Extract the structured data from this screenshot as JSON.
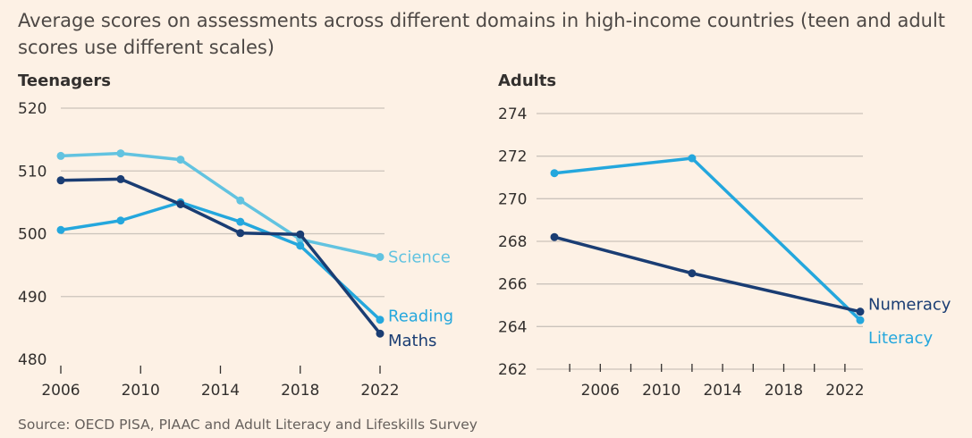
{
  "title": "Average scores on assessments across different domains in high-income countries (teen and adult scores use different scales)",
  "source": "Source: OECD PISA, PIAAC and Adult Literacy and Lifeskills Survey",
  "colors": {
    "science": "#62c3e0",
    "reading": "#24a7dd",
    "maths": "#1a3d73",
    "numeracy": "#1a3d73",
    "literacy": "#24a7dd",
    "grid": "#cbc3bb",
    "background": "#fdf1e5"
  },
  "chart_data": [
    {
      "type": "line",
      "title": "Teenagers",
      "x_ticks": [
        2006,
        2010,
        2014,
        2018,
        2022
      ],
      "y_ticks": [
        480,
        490,
        500,
        510,
        520
      ],
      "xlim": [
        2006,
        2022
      ],
      "ylim": [
        480,
        520
      ],
      "grid": true,
      "series": [
        {
          "name": "Science",
          "color_key": "science",
          "points": [
            [
              2006,
              512.4
            ],
            [
              2009,
              512.8
            ],
            [
              2012,
              511.8
            ],
            [
              2015,
              505.3
            ],
            [
              2018,
              499.1
            ],
            [
              2022,
              496.3
            ]
          ]
        },
        {
          "name": "Reading",
          "color_key": "reading",
          "points": [
            [
              2006,
              500.6
            ],
            [
              2009,
              502.1
            ],
            [
              2012,
              505.0
            ],
            [
              2015,
              501.9
            ],
            [
              2018,
              498.1
            ],
            [
              2022,
              486.3
            ]
          ]
        },
        {
          "name": "Maths",
          "color_key": "maths",
          "points": [
            [
              2006,
              508.5
            ],
            [
              2009,
              508.7
            ],
            [
              2012,
              504.7
            ],
            [
              2015,
              500.1
            ],
            [
              2018,
              499.9
            ],
            [
              2022,
              484.1
            ]
          ]
        }
      ]
    },
    {
      "type": "line",
      "title": "Adults",
      "x_ticks": [
        2006,
        2010,
        2014,
        2018,
        2022
      ],
      "y_ticks": [
        262,
        264,
        266,
        268,
        270,
        272,
        274
      ],
      "xlim": [
        2003,
        2023
      ],
      "ylim": [
        262,
        274
      ],
      "grid": true,
      "series": [
        {
          "name": "Literacy",
          "color_key": "literacy",
          "points": [
            [
              2003,
              271.2
            ],
            [
              2012,
              271.9
            ],
            [
              2023,
              264.3
            ]
          ]
        },
        {
          "name": "Numeracy",
          "color_key": "numeracy",
          "points": [
            [
              2003,
              268.2
            ],
            [
              2012,
              266.5
            ],
            [
              2023,
              264.7
            ]
          ]
        }
      ]
    }
  ]
}
